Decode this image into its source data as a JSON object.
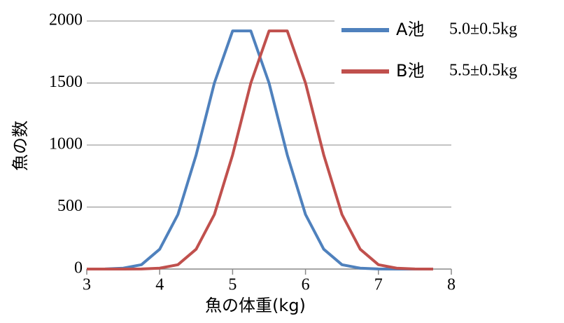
{
  "chart_data": {
    "type": "line",
    "xlabel": "魚の体重(kg)",
    "ylabel": "魚の数",
    "x": [
      3,
      3.25,
      3.5,
      3.75,
      4,
      4.25,
      4.5,
      4.75,
      5,
      5.25,
      5.5,
      5.75,
      6,
      6.25,
      6.5,
      6.75,
      7,
      7.25,
      7.5,
      7.75
    ],
    "series": [
      {
        "name": "A池",
        "label": "5.0±0.5kg",
        "color": "#4f81bd",
        "values": [
          0,
          1,
          7,
          35,
          160,
          440,
          920,
          1500,
          1920,
          1920,
          1500,
          920,
          440,
          160,
          35,
          7,
          1,
          0,
          0,
          0
        ]
      },
      {
        "name": "B池",
        "label": "5.5±0.5kg",
        "color": "#c0504d",
        "values": [
          0,
          0,
          0,
          1,
          7,
          35,
          160,
          440,
          920,
          1500,
          1920,
          1920,
          1500,
          920,
          440,
          160,
          35,
          7,
          1,
          0
        ]
      }
    ],
    "xlim": [
      3,
      8
    ],
    "xticks": [
      3,
      4,
      5,
      6,
      7,
      8
    ],
    "ylim": [
      0,
      2000
    ],
    "yticks": [
      0,
      500,
      1000,
      1500,
      2000
    ],
    "grid": true,
    "legend": "upper right"
  }
}
